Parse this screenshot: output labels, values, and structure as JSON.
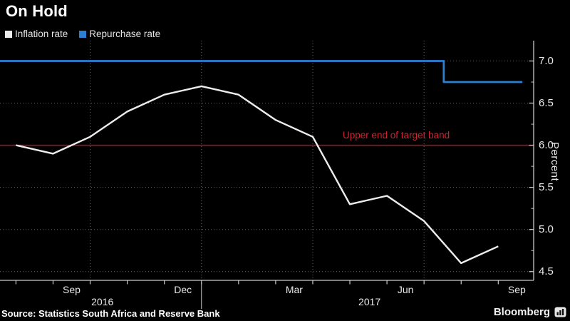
{
  "title": "On Hold",
  "source_text": "Source: Statistics South Africa and Reserve Bank",
  "footer": {
    "brand": "Bloomberg"
  },
  "chart_data": {
    "type": "line",
    "title": "On Hold",
    "ylabel": "Percent",
    "ylim": [
      4.4,
      7.25
    ],
    "grid": "dotted",
    "legend_position": "top-left",
    "x_axis": {
      "unit": "month",
      "tick_labels": [
        {
          "text": "Sep",
          "pos": 1.5
        },
        {
          "text": "Dec",
          "pos": 4.5
        },
        {
          "text": "Mar",
          "pos": 7.5
        },
        {
          "text": "Jun",
          "pos": 10.5
        },
        {
          "text": "Sep",
          "pos": 13.5
        }
      ],
      "year_labels": [
        {
          "text": "2016",
          "pos": 2.33
        },
        {
          "text": "2017",
          "pos": 9.53
        }
      ]
    },
    "y_axis": {
      "tick_values": [
        7.0,
        6.5,
        6.0,
        5.5,
        5.0,
        4.5
      ],
      "minor_tick_values": [
        6.75,
        6.25,
        5.75,
        5.25,
        4.75
      ],
      "gridline_values": [
        7.0,
        6.5,
        5.5,
        5.0,
        4.5
      ]
    },
    "quarter_gridlines_x_months": [
      2,
      5,
      8,
      11
    ],
    "series": [
      {
        "name": "Inflation rate",
        "color": "#ededed",
        "months": [
          "Jul 2016",
          "Aug 2016",
          "Sep 2016",
          "Oct 2016",
          "Nov 2016",
          "Dec 2016",
          "Jan 2017",
          "Feb 2017",
          "Mar 2017",
          "Apr 2017",
          "May 2017",
          "Jun 2017",
          "Jul 2017",
          "Aug 2017"
        ],
        "values": [
          6.0,
          5.9,
          6.1,
          6.4,
          6.6,
          6.7,
          6.6,
          6.3,
          6.1,
          5.3,
          5.4,
          5.1,
          4.6,
          4.8
        ]
      },
      {
        "name": "Repurchase rate",
        "color": "#2b7fd4",
        "step_x_months": [
          -0.43,
          11.53,
          11.53,
          13.65
        ],
        "step_values": [
          7.0,
          7.0,
          6.75,
          6.75
        ]
      }
    ],
    "annotation": {
      "text": "Upper end of target band",
      "value": 6.0,
      "line_color": "#c21325",
      "text_color": "#d2232e"
    }
  }
}
